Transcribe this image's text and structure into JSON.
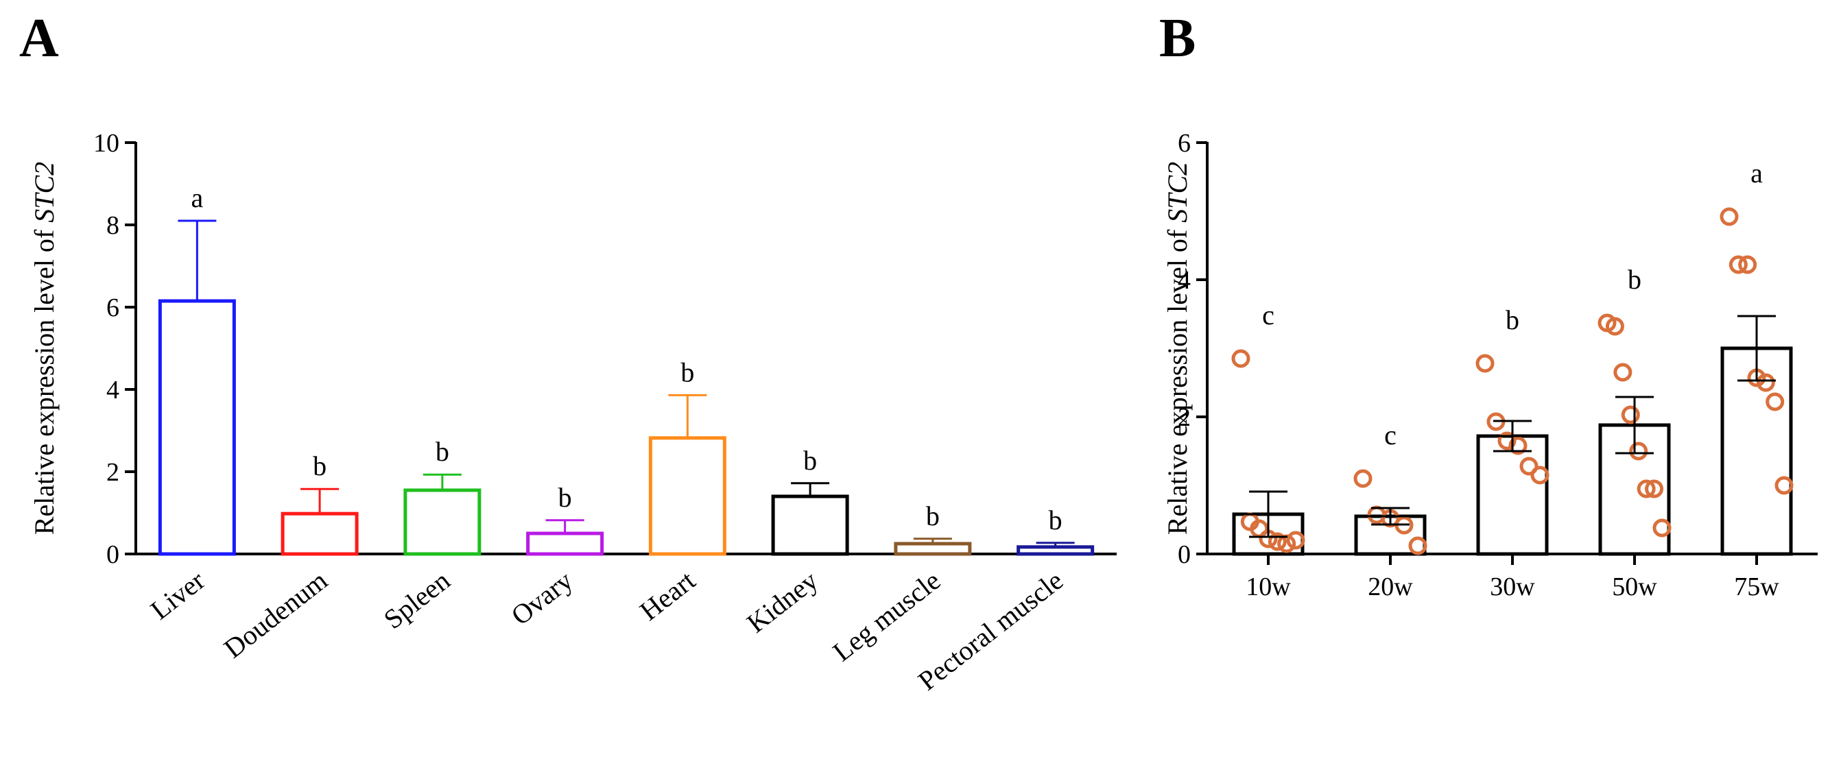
{
  "chart_data": [
    {
      "panel": "A",
      "type": "bar",
      "title": "",
      "xlabel": "",
      "ylabel_prefix": "Relative expression level of ",
      "ylabel_gene": "STC2",
      "ylim": [
        0,
        10
      ],
      "yticks": [
        0,
        2,
        4,
        6,
        8,
        10
      ],
      "categories": [
        "Liver",
        "Doudenum",
        "Spleen",
        "Ovary",
        "Heart",
        "Kidney",
        "Leg muscle",
        "Pectoral muscle"
      ],
      "values": [
        6.15,
        0.98,
        1.55,
        0.5,
        2.82,
        1.4,
        0.25,
        0.17
      ],
      "error_upper": [
        1.95,
        0.6,
        0.38,
        0.32,
        1.04,
        0.32,
        0.12,
        0.1
      ],
      "significance": [
        "a",
        "b",
        "b",
        "b",
        "b",
        "b",
        "b",
        "b"
      ],
      "colors": [
        "#1a1aff",
        "#ff1a1a",
        "#1fbf1f",
        "#b81ae6",
        "#ff8c1a",
        "#000000",
        "#8b5a2b",
        "#1a1a99"
      ],
      "bar_fill": "none",
      "grid": false,
      "legend": "none"
    },
    {
      "panel": "B",
      "type": "bar",
      "title": "",
      "xlabel": "",
      "ylabel_prefix": "Relative expression level of ",
      "ylabel_gene": "STC2",
      "ylim": [
        0,
        6
      ],
      "yticks": [
        0,
        2,
        4,
        6
      ],
      "categories": [
        "10w",
        "20w",
        "30w",
        "50w",
        "75w"
      ],
      "values": [
        0.58,
        0.55,
        1.72,
        1.88,
        3.0
      ],
      "sem": [
        0.33,
        0.12,
        0.22,
        0.41,
        0.47
      ],
      "significance": [
        "c",
        "c",
        "b",
        "b",
        "a"
      ],
      "points": [
        [
          2.85,
          0.47,
          0.37,
          0.22,
          0.18,
          0.15,
          0.2
        ],
        [
          1.1,
          0.57,
          0.52,
          0.42,
          0.12
        ],
        [
          2.78,
          1.93,
          1.65,
          1.58,
          1.28,
          1.15
        ],
        [
          3.37,
          3.32,
          2.65,
          2.03,
          1.5,
          0.95,
          0.95,
          0.38
        ],
        [
          4.92,
          4.22,
          4.22,
          2.57,
          2.5,
          2.22,
          1.0
        ]
      ],
      "bar_color": "#000000",
      "point_color": "#d9703c",
      "bar_fill": "none",
      "grid": false,
      "legend": "none"
    }
  ]
}
